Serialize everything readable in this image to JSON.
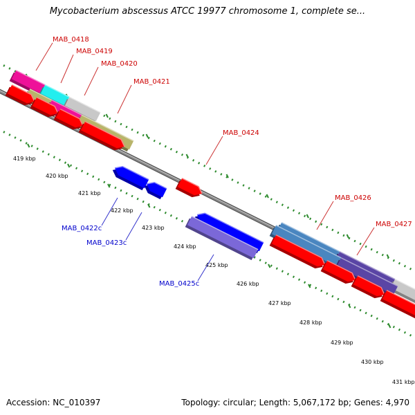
{
  "title": "Mycobacterium abscessus ATCC 19977 chromosome 1, complete se...",
  "footer": {
    "accession": "Accession: NC_010397",
    "topology": "Topology: circular; Length: 5,067,172 bp; Genes: 4,970"
  },
  "colors": {
    "forward_gene": "#ff0000",
    "reverse_gene": "#0000ff",
    "forward_label": "#cc0000",
    "reverse_label": "#0000cc",
    "backbone": "#888888",
    "ruler": "#2e8b2e",
    "magenta_feature": "#ee1199",
    "cyan_feature": "#22eeee",
    "olive_feature": "#b8b46a",
    "gray_feature": "#c8c8c8",
    "steelblue_feature": "#4a86c0",
    "slateblue_feature": "#5a45a5",
    "mediumpurple_feature": "#7b68d8"
  },
  "kbp_labels": [
    "419 kbp",
    "420 kbp",
    "421 kbp",
    "422 kbp",
    "423 kbp",
    "424 kbp",
    "425 kbp",
    "426 kbp",
    "427 kbp",
    "428 kbp",
    "429 kbp",
    "430 kbp",
    "431 kbp"
  ],
  "genes": [
    {
      "label": "MAB_0418",
      "strand": "forward"
    },
    {
      "label": "MAB_0419",
      "strand": "forward"
    },
    {
      "label": "MAB_0420",
      "strand": "forward"
    },
    {
      "label": "MAB_0421",
      "strand": "forward"
    },
    {
      "label": "MAB_0422c",
      "strand": "reverse"
    },
    {
      "label": "MAB_0423c",
      "strand": "reverse"
    },
    {
      "label": "MAB_0424",
      "strand": "forward"
    },
    {
      "label": "MAB_0425c",
      "strand": "reverse"
    },
    {
      "label": "MAB_0426",
      "strand": "forward"
    },
    {
      "label": "MAB_0427",
      "strand": "forward"
    }
  ]
}
